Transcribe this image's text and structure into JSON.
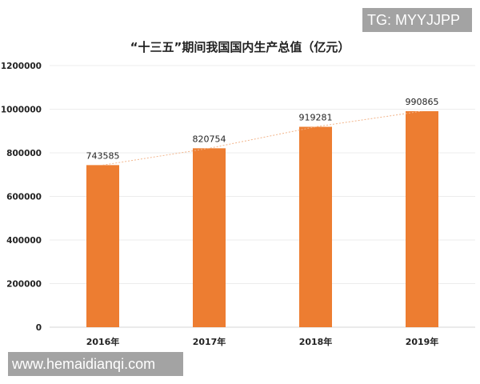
{
  "chart_data": {
    "type": "bar",
    "title": "“十三五”期间我国国内生产总值（亿元）",
    "categories": [
      "2016年",
      "2017年",
      "2018年",
      "2019年"
    ],
    "values": [
      743585,
      820754,
      919281,
      990865
    ],
    "data_labels": [
      "743585",
      "820754",
      "919281",
      "990865"
    ],
    "ylim": [
      0,
      1200000
    ],
    "yticks": [
      "0",
      "200000",
      "400000",
      "600000",
      "800000",
      "1000000",
      "1200000"
    ],
    "ytick_values": [
      0,
      200000,
      400000,
      600000,
      800000,
      1000000,
      1200000
    ],
    "xlabel": "",
    "ylabel": "",
    "grid": true,
    "trendline": "dotted",
    "bar_color": "#ed7d31"
  },
  "watermarks": {
    "top": "TG: MYYJJPP",
    "bottom": "www.hemaidianqi.com"
  }
}
